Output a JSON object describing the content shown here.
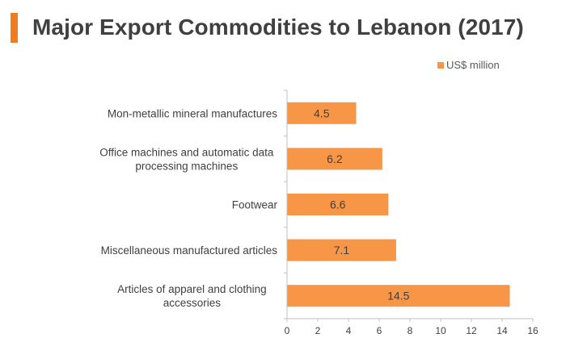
{
  "colors": {
    "accent": "#f07c1f",
    "bar": "#f79646",
    "axis": "#bfbfbf",
    "text": "#404040"
  },
  "chart_data": {
    "type": "bar",
    "orientation": "horizontal",
    "title": "Major Export Commodities to Lebanon (2017)",
    "categories": [
      "Mon-metallic mineral manufactures",
      "Office machines and automatic data processing machines",
      "Footwear",
      "Miscellaneous manufactured articles",
      "Articles of apparel and clothing accessories"
    ],
    "series": [
      {
        "name": "US$ million",
        "values": [
          4.5,
          6.2,
          6.6,
          7.1,
          14.5
        ],
        "labels": [
          "4.5",
          "6.2",
          "6.6",
          "7.1",
          "14.5"
        ]
      }
    ],
    "xlim": [
      0,
      16
    ],
    "xticks": [
      0,
      2,
      4,
      6,
      8,
      10,
      12,
      14,
      16
    ],
    "grid": false,
    "legend_position": "top-right"
  }
}
